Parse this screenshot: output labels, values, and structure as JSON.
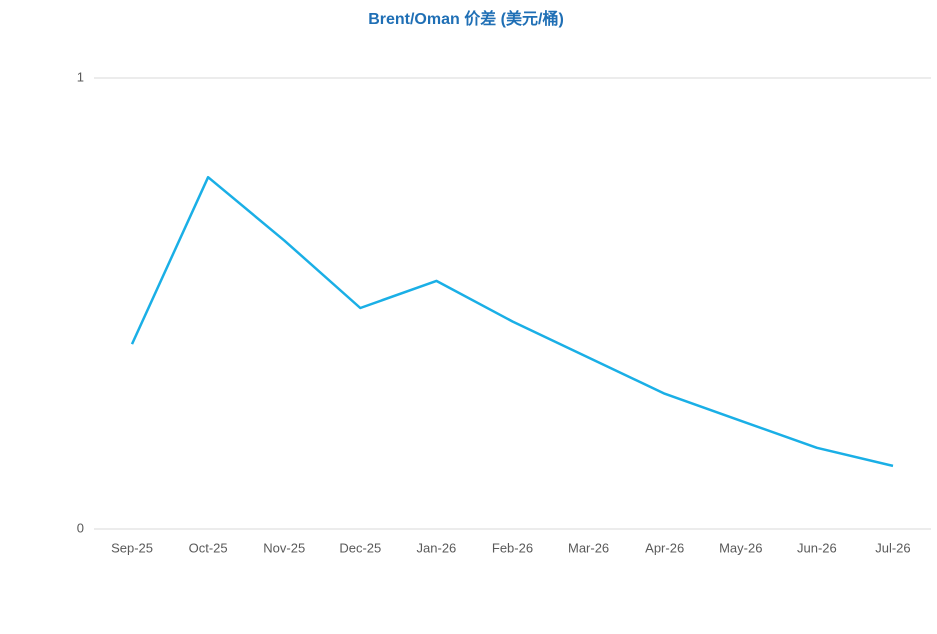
{
  "chart_data": {
    "type": "line",
    "title": "Brent/Oman 价差 (美元/桶)",
    "categories": [
      "Sep-25",
      "Oct-25",
      "Nov-25",
      "Dec-25",
      "Jan-26",
      "Feb-26",
      "Mar-26",
      "Apr-26",
      "May-26",
      "Jun-26",
      "Jul-26"
    ],
    "values": [
      0.41,
      0.78,
      0.64,
      0.49,
      0.55,
      0.46,
      0.38,
      0.3,
      0.24,
      0.18,
      0.14
    ],
    "color": "#1aafe6",
    "ylim": [
      0,
      1
    ],
    "yticks": [
      0,
      1
    ],
    "grid": true
  }
}
